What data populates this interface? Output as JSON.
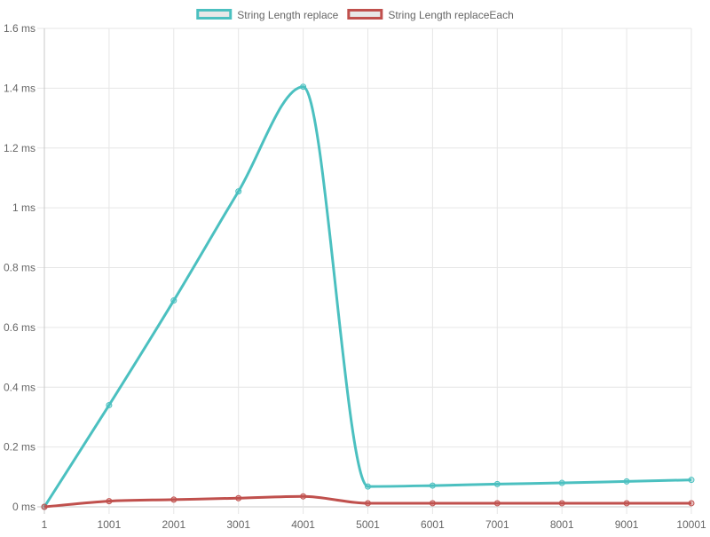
{
  "chart_data": {
    "type": "line",
    "title": "",
    "xlabel": "",
    "ylabel": "",
    "categories": [
      "1",
      "1001",
      "2001",
      "3001",
      "4001",
      "5001",
      "6001",
      "7001",
      "8001",
      "9001",
      "10001"
    ],
    "y_ticks": [
      "0 ms",
      "0.2 ms",
      "0.4 ms",
      "0.6 ms",
      "0.8 ms",
      "1 ms",
      "1.2 ms",
      "1.4 ms",
      "1.6 ms"
    ],
    "ylim": [
      0,
      1.6
    ],
    "grid": true,
    "legend_position": "top-center",
    "series": [
      {
        "name": "String Length replace",
        "color": "#4bc0c0",
        "values": [
          0.0,
          0.34,
          0.69,
          1.055,
          1.405,
          0.068,
          0.071,
          0.076,
          0.08,
          0.085,
          0.09
        ]
      },
      {
        "name": "String Length replaceEach",
        "color": "#c0504d",
        "values": [
          0.0,
          0.019,
          0.024,
          0.029,
          0.035,
          0.012,
          0.012,
          0.012,
          0.012,
          0.012,
          0.012
        ]
      }
    ]
  }
}
